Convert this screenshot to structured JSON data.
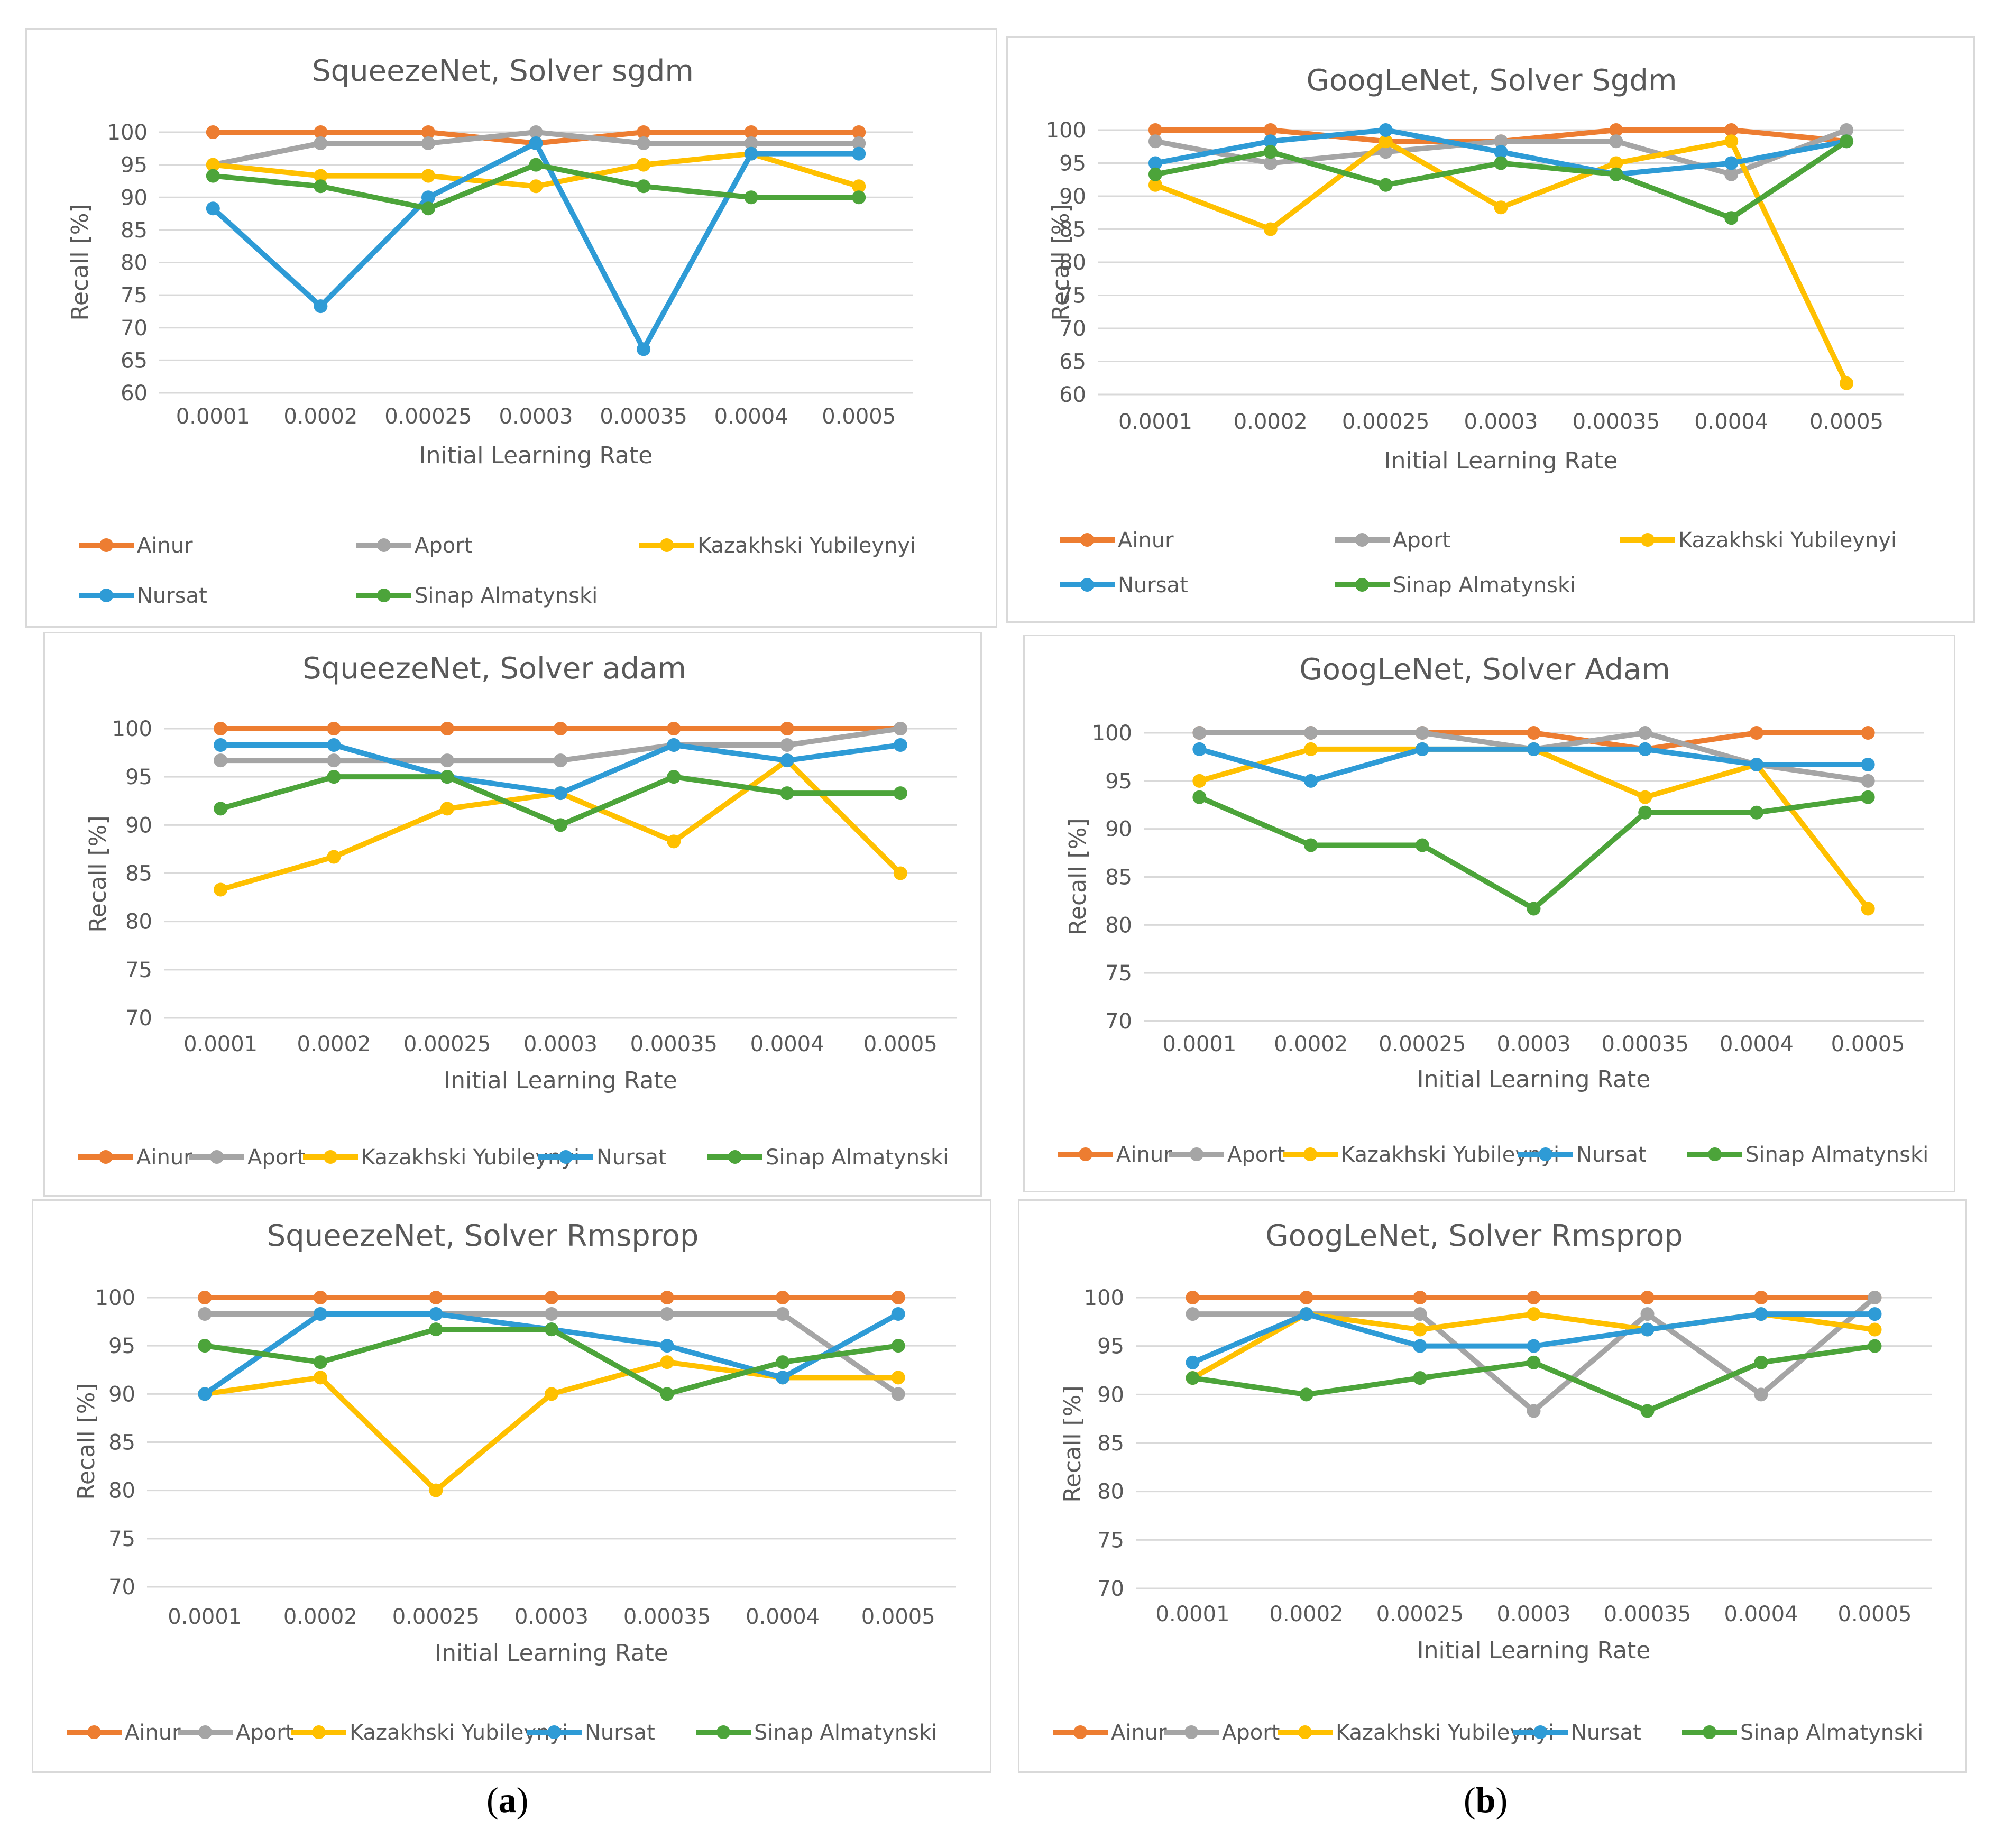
{
  "sublabels": {
    "left": "(a)",
    "right": "(b)"
  },
  "colors": {
    "Ainur": "#ED7D31",
    "Aport": "#A5A5A5",
    "Kazakhski Yubileynyi": "#FFC000",
    "Nursat": "#2E9BD6",
    "Sinap Almatynski": "#4CA43A"
  },
  "chart_data": [
    {
      "type": "line",
      "title": "SqueezeNet,  Solver sgdm",
      "xlabel": "Initial Learning Rate",
      "ylabel": "Recall [%]",
      "ylim": [
        60,
        100
      ],
      "yticks": [
        "60",
        "65",
        "70",
        "75",
        "80",
        "85",
        "90",
        "95",
        "100"
      ],
      "categories": [
        "0.0001",
        "0.0002",
        "0.00025",
        "0.0003",
        "0.00035",
        "0.0004",
        "0.0005"
      ],
      "legend_rows": 2,
      "series": [
        {
          "name": "Ainur",
          "values": [
            100,
            100,
            100,
            98.3,
            100,
            100,
            100
          ]
        },
        {
          "name": "Aport",
          "values": [
            95,
            98.3,
            98.3,
            100,
            98.3,
            98.3,
            98.3
          ]
        },
        {
          "name": "Kazakhski Yubileynyi",
          "values": [
            95,
            93.3,
            93.3,
            91.7,
            95,
            96.7,
            91.7
          ]
        },
        {
          "name": "Nursat",
          "values": [
            88.3,
            73.3,
            90,
            98.3,
            66.7,
            96.7,
            96.7
          ]
        },
        {
          "name": "Sinap Almatynski",
          "values": [
            93.3,
            91.7,
            88.3,
            95,
            91.7,
            90,
            90
          ]
        }
      ]
    },
    {
      "type": "line",
      "title": "GoogLeNet,  Solver Sgdm",
      "xlabel": "Initial Learning Rate",
      "ylabel": "Recall [%]",
      "ylim": [
        60,
        100
      ],
      "yticks": [
        "60",
        "65",
        "70",
        "75",
        "80",
        "85",
        "90",
        "95",
        "100"
      ],
      "categories": [
        "0.0001",
        "0.0002",
        "0.00025",
        "0.0003",
        "0.00035",
        "0.0004",
        "0.0005"
      ],
      "legend_rows": 2,
      "series": [
        {
          "name": "Ainur",
          "values": [
            100,
            100,
            98.3,
            98.3,
            100,
            100,
            98.3
          ]
        },
        {
          "name": "Aport",
          "values": [
            98.3,
            95,
            96.7,
            98.3,
            98.3,
            93.3,
            100
          ]
        },
        {
          "name": "Kazakhski Yubileynyi",
          "values": [
            91.7,
            85,
            98.3,
            88.3,
            95,
            98.3,
            61.7
          ]
        },
        {
          "name": "Nursat",
          "values": [
            95,
            98.3,
            100,
            96.7,
            93.3,
            95,
            98.3
          ]
        },
        {
          "name": "Sinap Almatynski",
          "values": [
            93.3,
            96.7,
            91.7,
            95,
            93.3,
            86.7,
            98.3
          ]
        }
      ]
    },
    {
      "type": "line",
      "title": "SqueezeNet,  Solver adam",
      "xlabel": "Initial Learning Rate",
      "ylabel": "Recall [%]",
      "ylim": [
        70,
        100
      ],
      "yticks": [
        "70",
        "75",
        "80",
        "85",
        "90",
        "95",
        "100"
      ],
      "categories": [
        "0.0001",
        "0.0002",
        "0.00025",
        "0.0003",
        "0.00035",
        "0.0004",
        "0.0005"
      ],
      "legend_rows": 1,
      "series": [
        {
          "name": "Ainur",
          "values": [
            100,
            100,
            100,
            100,
            100,
            100,
            100
          ]
        },
        {
          "name": "Aport",
          "values": [
            96.7,
            96.7,
            96.7,
            96.7,
            98.3,
            98.3,
            100
          ]
        },
        {
          "name": "Kazakhski Yubileynyi",
          "values": [
            83.3,
            86.7,
            91.7,
            93.3,
            88.3,
            96.7,
            85
          ]
        },
        {
          "name": "Nursat",
          "values": [
            98.3,
            98.3,
            95,
            93.3,
            98.3,
            96.7,
            98.3
          ]
        },
        {
          "name": "Sinap Almatynski",
          "values": [
            91.7,
            95,
            95,
            90,
            95,
            93.3,
            93.3
          ]
        }
      ]
    },
    {
      "type": "line",
      "title": "GoogLeNet,  Solver Adam",
      "xlabel": "Initial Learning Rate",
      "ylabel": "Recall [%]",
      "ylim": [
        70,
        100
      ],
      "yticks": [
        "70",
        "75",
        "80",
        "85",
        "90",
        "95",
        "100"
      ],
      "categories": [
        "0.0001",
        "0.0002",
        "0.00025",
        "0.0003",
        "0.00035",
        "0.0004",
        "0.0005"
      ],
      "legend_rows": 1,
      "series": [
        {
          "name": "Ainur",
          "values": [
            100,
            100,
            100,
            100,
            98.3,
            100,
            100
          ]
        },
        {
          "name": "Aport",
          "values": [
            100,
            100,
            100,
            98.3,
            100,
            96.7,
            95
          ]
        },
        {
          "name": "Kazakhski Yubileynyi",
          "values": [
            95,
            98.3,
            98.3,
            98.3,
            93.3,
            96.7,
            81.7
          ]
        },
        {
          "name": "Nursat",
          "values": [
            98.3,
            95,
            98.3,
            98.3,
            98.3,
            96.7,
            96.7
          ]
        },
        {
          "name": "Sinap Almatynski",
          "values": [
            93.3,
            88.3,
            88.3,
            81.7,
            91.7,
            91.7,
            93.3
          ]
        }
      ]
    },
    {
      "type": "line",
      "title": "SqueezeNet,  Solver Rmsprop",
      "xlabel": "Initial Learning Rate",
      "ylabel": "Recall [%]",
      "ylim": [
        70,
        100
      ],
      "yticks": [
        "70",
        "75",
        "80",
        "85",
        "90",
        "95",
        "100"
      ],
      "categories": [
        "0.0001",
        "0.0002",
        "0.00025",
        "0.0003",
        "0.00035",
        "0.0004",
        "0.0005"
      ],
      "legend_rows": 1,
      "series": [
        {
          "name": "Ainur",
          "values": [
            100,
            100,
            100,
            100,
            100,
            100,
            100
          ]
        },
        {
          "name": "Aport",
          "values": [
            98.3,
            98.3,
            98.3,
            98.3,
            98.3,
            98.3,
            90
          ]
        },
        {
          "name": "Kazakhski Yubileynyi",
          "values": [
            90,
            91.7,
            80,
            90,
            93.3,
            91.7,
            91.7
          ]
        },
        {
          "name": "Nursat",
          "values": [
            90,
            98.3,
            98.3,
            96.7,
            95,
            91.7,
            98.3
          ]
        },
        {
          "name": "Sinap Almatynski",
          "values": [
            95,
            93.3,
            96.7,
            96.7,
            90,
            93.3,
            95
          ]
        }
      ]
    },
    {
      "type": "line",
      "title": "GoogLeNet,  Solver Rmsprop",
      "xlabel": "Initial Learning Rate",
      "ylabel": "Recall [%]",
      "ylim": [
        70,
        100
      ],
      "yticks": [
        "70",
        "75",
        "80",
        "85",
        "90",
        "95",
        "100"
      ],
      "categories": [
        "0.0001",
        "0.0002",
        "0.00025",
        "0.0003",
        "0.00035",
        "0.0004",
        "0.0005"
      ],
      "legend_rows": 1,
      "series": [
        {
          "name": "Ainur",
          "values": [
            100,
            100,
            100,
            100,
            100,
            100,
            100
          ]
        },
        {
          "name": "Aport",
          "values": [
            98.3,
            98.3,
            98.3,
            88.3,
            98.3,
            90,
            100
          ]
        },
        {
          "name": "Kazakhski Yubileynyi",
          "values": [
            91.7,
            98.3,
            96.7,
            98.3,
            96.7,
            98.3,
            96.7
          ]
        },
        {
          "name": "Nursat",
          "values": [
            93.3,
            98.3,
            95,
            95,
            96.7,
            98.3,
            98.3
          ]
        },
        {
          "name": "Sinap Almatynski",
          "values": [
            91.7,
            90,
            91.7,
            93.3,
            88.3,
            93.3,
            95
          ]
        }
      ]
    }
  ]
}
